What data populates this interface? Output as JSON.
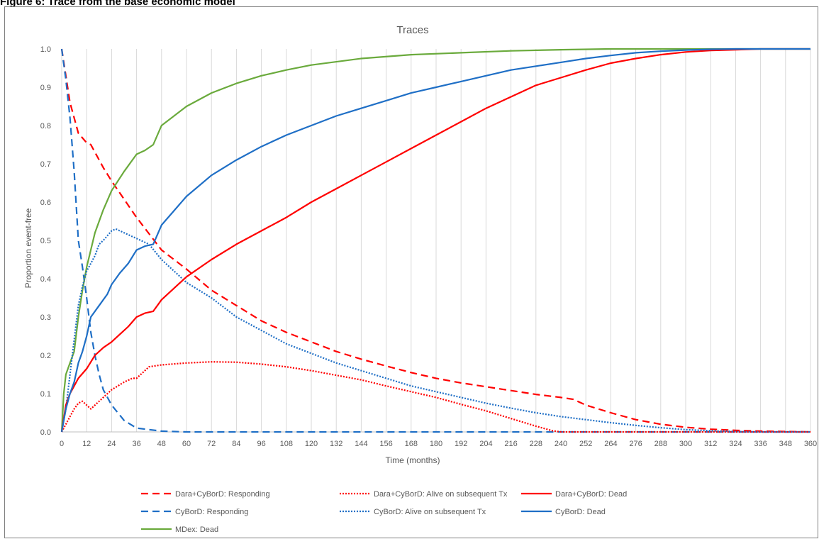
{
  "caption": "Figure 6: Trace from the base economic model",
  "chart_data": {
    "type": "line",
    "title": "Traces",
    "xlabel": "Time (months)",
    "ylabel": "Proportion event-free",
    "xlim": [
      0,
      360
    ],
    "ylim": [
      0,
      1
    ],
    "x_ticks": [
      "0",
      "12",
      "24",
      "36",
      "48",
      "60",
      "72",
      "84",
      "96",
      "108",
      "120",
      "132",
      "144",
      "156",
      "168",
      "180",
      "192",
      "204",
      "216",
      "228",
      "240",
      "252",
      "264",
      "276",
      "288",
      "300",
      "312",
      "324",
      "336",
      "348",
      "360"
    ],
    "y_ticks": [
      "0.0",
      "0.1",
      "0.2",
      "0.3",
      "0.4",
      "0.5",
      "0.6",
      "0.7",
      "0.8",
      "0.9",
      "1.0"
    ],
    "grid": "vertical",
    "legend_position": "bottom",
    "series": [
      {
        "name": "Dara+CyBorD: Responding",
        "color": "#ff0000",
        "style": "dashed",
        "points": [
          [
            0,
            1.0
          ],
          [
            4,
            0.86
          ],
          [
            8,
            0.78
          ],
          [
            12,
            0.755
          ],
          [
            14,
            0.75
          ],
          [
            20,
            0.69
          ],
          [
            24,
            0.655
          ],
          [
            36,
            0.56
          ],
          [
            48,
            0.475
          ],
          [
            60,
            0.425
          ],
          [
            72,
            0.37
          ],
          [
            84,
            0.33
          ],
          [
            96,
            0.29
          ],
          [
            108,
            0.26
          ],
          [
            120,
            0.235
          ],
          [
            132,
            0.21
          ],
          [
            144,
            0.19
          ],
          [
            156,
            0.172
          ],
          [
            168,
            0.155
          ],
          [
            180,
            0.14
          ],
          [
            192,
            0.128
          ],
          [
            204,
            0.118
          ],
          [
            216,
            0.108
          ],
          [
            228,
            0.098
          ],
          [
            240,
            0.09
          ],
          [
            246,
            0.085
          ],
          [
            252,
            0.07
          ],
          [
            264,
            0.05
          ],
          [
            276,
            0.032
          ],
          [
            288,
            0.02
          ],
          [
            300,
            0.012
          ],
          [
            312,
            0.007
          ],
          [
            324,
            0.004
          ],
          [
            336,
            0.002
          ],
          [
            360,
            0.0
          ]
        ]
      },
      {
        "name": "CyBorD: Responding",
        "color": "#1f6fc6",
        "style": "dashed",
        "points": [
          [
            0,
            1.0
          ],
          [
            2,
            0.92
          ],
          [
            4,
            0.82
          ],
          [
            6,
            0.68
          ],
          [
            8,
            0.5
          ],
          [
            10,
            0.43
          ],
          [
            12,
            0.35
          ],
          [
            14,
            0.26
          ],
          [
            16,
            0.2
          ],
          [
            18,
            0.15
          ],
          [
            20,
            0.11
          ],
          [
            24,
            0.07
          ],
          [
            30,
            0.03
          ],
          [
            36,
            0.01
          ],
          [
            48,
            0.002
          ],
          [
            60,
            0.0
          ],
          [
            360,
            0.0
          ]
        ]
      },
      {
        "name": "MDex: Dead",
        "color": "#6aaa3c",
        "style": "solid",
        "points": [
          [
            0,
            0.0
          ],
          [
            1,
            0.1
          ],
          [
            2,
            0.15
          ],
          [
            4,
            0.18
          ],
          [
            6,
            0.21
          ],
          [
            8,
            0.3
          ],
          [
            10,
            0.37
          ],
          [
            12,
            0.43
          ],
          [
            16,
            0.52
          ],
          [
            20,
            0.58
          ],
          [
            24,
            0.63
          ],
          [
            30,
            0.68
          ],
          [
            36,
            0.725
          ],
          [
            40,
            0.735
          ],
          [
            44,
            0.75
          ],
          [
            48,
            0.8
          ],
          [
            60,
            0.85
          ],
          [
            72,
            0.885
          ],
          [
            84,
            0.91
          ],
          [
            96,
            0.93
          ],
          [
            108,
            0.945
          ],
          [
            120,
            0.958
          ],
          [
            144,
            0.975
          ],
          [
            168,
            0.985
          ],
          [
            192,
            0.99
          ],
          [
            216,
            0.995
          ],
          [
            240,
            0.998
          ],
          [
            264,
            1.0
          ],
          [
            360,
            1.0
          ]
        ]
      },
      {
        "name": "Dara+CyBorD: Alive on subsequent Tx",
        "color": "#ff0000",
        "style": "dotted",
        "points": [
          [
            0,
            0.0
          ],
          [
            2,
            0.02
          ],
          [
            4,
            0.04
          ],
          [
            6,
            0.06
          ],
          [
            8,
            0.075
          ],
          [
            10,
            0.08
          ],
          [
            12,
            0.07
          ],
          [
            14,
            0.06
          ],
          [
            18,
            0.08
          ],
          [
            24,
            0.11
          ],
          [
            30,
            0.13
          ],
          [
            34,
            0.14
          ],
          [
            36,
            0.14
          ],
          [
            42,
            0.17
          ],
          [
            48,
            0.175
          ],
          [
            60,
            0.18
          ],
          [
            72,
            0.183
          ],
          [
            84,
            0.182
          ],
          [
            96,
            0.177
          ],
          [
            108,
            0.17
          ],
          [
            120,
            0.16
          ],
          [
            132,
            0.148
          ],
          [
            144,
            0.136
          ],
          [
            156,
            0.12
          ],
          [
            168,
            0.105
          ],
          [
            180,
            0.09
          ],
          [
            192,
            0.072
          ],
          [
            204,
            0.055
          ],
          [
            216,
            0.035
          ],
          [
            228,
            0.015
          ],
          [
            236,
            0.003
          ],
          [
            240,
            0.0
          ],
          [
            360,
            0.0
          ]
        ]
      },
      {
        "name": "CyBorD: Alive on subsequent Tx",
        "color": "#1f6fc6",
        "style": "dotted",
        "points": [
          [
            0,
            0.0
          ],
          [
            2,
            0.06
          ],
          [
            4,
            0.15
          ],
          [
            6,
            0.24
          ],
          [
            8,
            0.33
          ],
          [
            10,
            0.38
          ],
          [
            12,
            0.42
          ],
          [
            14,
            0.44
          ],
          [
            16,
            0.46
          ],
          [
            18,
            0.49
          ],
          [
            20,
            0.5
          ],
          [
            24,
            0.525
          ],
          [
            26,
            0.53
          ],
          [
            30,
            0.52
          ],
          [
            36,
            0.505
          ],
          [
            42,
            0.49
          ],
          [
            48,
            0.45
          ],
          [
            60,
            0.39
          ],
          [
            72,
            0.35
          ],
          [
            84,
            0.3
          ],
          [
            96,
            0.265
          ],
          [
            108,
            0.23
          ],
          [
            120,
            0.205
          ],
          [
            132,
            0.18
          ],
          [
            144,
            0.16
          ],
          [
            156,
            0.14
          ],
          [
            168,
            0.12
          ],
          [
            180,
            0.105
          ],
          [
            192,
            0.09
          ],
          [
            204,
            0.075
          ],
          [
            216,
            0.062
          ],
          [
            228,
            0.05
          ],
          [
            240,
            0.04
          ],
          [
            252,
            0.032
          ],
          [
            264,
            0.024
          ],
          [
            276,
            0.017
          ],
          [
            288,
            0.011
          ],
          [
            300,
            0.006
          ],
          [
            312,
            0.003
          ],
          [
            324,
            0.001
          ],
          [
            336,
            0.0
          ],
          [
            360,
            0.0
          ]
        ]
      },
      {
        "name": "Dara+CyBorD: Dead",
        "color": "#ff0000",
        "style": "solid",
        "points": [
          [
            0,
            0.0
          ],
          [
            2,
            0.07
          ],
          [
            4,
            0.1
          ],
          [
            6,
            0.12
          ],
          [
            8,
            0.14
          ],
          [
            12,
            0.165
          ],
          [
            16,
            0.2
          ],
          [
            20,
            0.22
          ],
          [
            24,
            0.235
          ],
          [
            28,
            0.255
          ],
          [
            32,
            0.275
          ],
          [
            36,
            0.3
          ],
          [
            40,
            0.31
          ],
          [
            44,
            0.315
          ],
          [
            48,
            0.345
          ],
          [
            60,
            0.405
          ],
          [
            72,
            0.45
          ],
          [
            84,
            0.49
          ],
          [
            96,
            0.525
          ],
          [
            108,
            0.56
          ],
          [
            120,
            0.6
          ],
          [
            132,
            0.635
          ],
          [
            144,
            0.67
          ],
          [
            156,
            0.705
          ],
          [
            168,
            0.74
          ],
          [
            180,
            0.775
          ],
          [
            192,
            0.81
          ],
          [
            204,
            0.845
          ],
          [
            216,
            0.875
          ],
          [
            228,
            0.905
          ],
          [
            240,
            0.925
          ],
          [
            252,
            0.945
          ],
          [
            264,
            0.963
          ],
          [
            276,
            0.975
          ],
          [
            288,
            0.985
          ],
          [
            300,
            0.992
          ],
          [
            312,
            0.996
          ],
          [
            324,
            0.998
          ],
          [
            336,
            1.0
          ],
          [
            360,
            1.0
          ]
        ]
      },
      {
        "name": "CyBorD: Dead",
        "color": "#1f6fc6",
        "style": "solid",
        "points": [
          [
            0,
            0.0
          ],
          [
            2,
            0.06
          ],
          [
            4,
            0.1
          ],
          [
            6,
            0.13
          ],
          [
            8,
            0.18
          ],
          [
            10,
            0.21
          ],
          [
            12,
            0.25
          ],
          [
            14,
            0.3
          ],
          [
            18,
            0.33
          ],
          [
            22,
            0.36
          ],
          [
            24,
            0.385
          ],
          [
            28,
            0.415
          ],
          [
            32,
            0.44
          ],
          [
            36,
            0.475
          ],
          [
            40,
            0.485
          ],
          [
            44,
            0.49
          ],
          [
            48,
            0.54
          ],
          [
            60,
            0.615
          ],
          [
            72,
            0.67
          ],
          [
            84,
            0.71
          ],
          [
            96,
            0.745
          ],
          [
            108,
            0.775
          ],
          [
            120,
            0.8
          ],
          [
            132,
            0.825
          ],
          [
            144,
            0.845
          ],
          [
            156,
            0.865
          ],
          [
            168,
            0.885
          ],
          [
            180,
            0.9
          ],
          [
            192,
            0.915
          ],
          [
            204,
            0.93
          ],
          [
            216,
            0.945
          ],
          [
            228,
            0.955
          ],
          [
            240,
            0.965
          ],
          [
            252,
            0.975
          ],
          [
            264,
            0.983
          ],
          [
            276,
            0.99
          ],
          [
            288,
            0.994
          ],
          [
            300,
            0.997
          ],
          [
            312,
            0.999
          ],
          [
            324,
            1.0
          ],
          [
            360,
            1.0
          ]
        ]
      }
    ]
  }
}
